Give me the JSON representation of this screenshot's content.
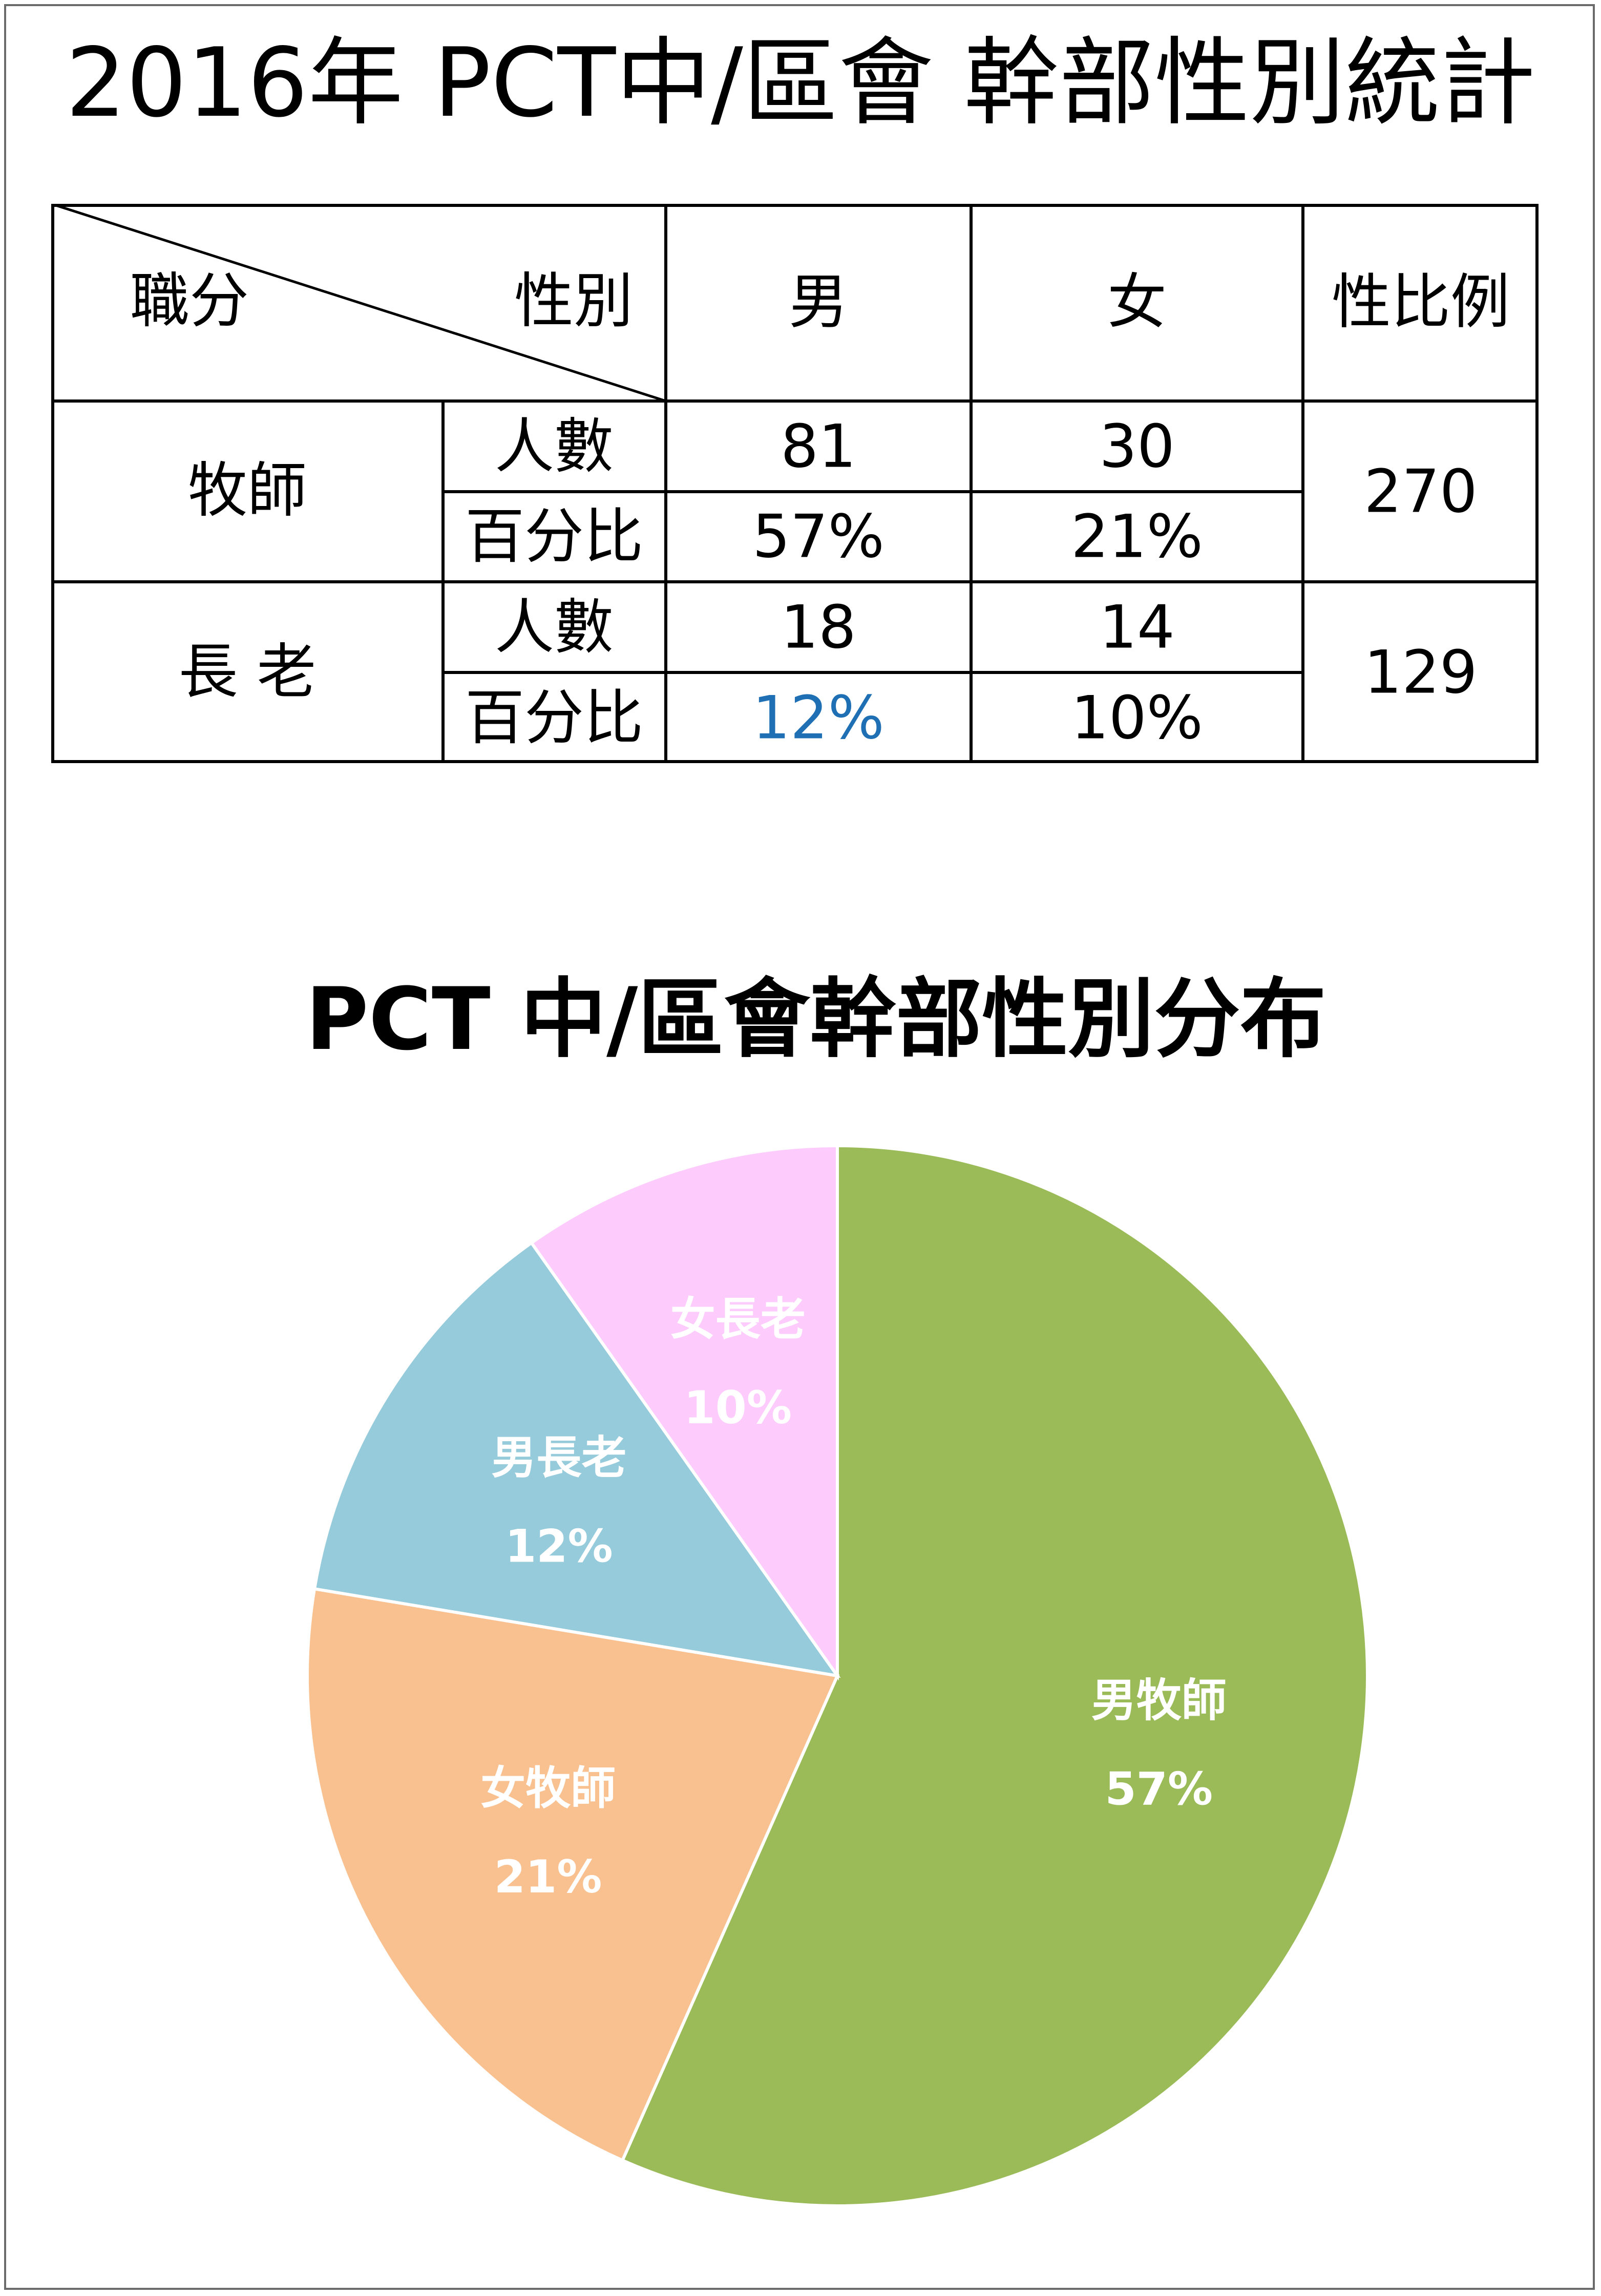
{
  "page_title": "2016年 PCT中/區會 幹部性別統計",
  "table": {
    "corner_row_label": "職分",
    "corner_col_label": "性別",
    "col_headers": [
      "男",
      "女",
      "性比例"
    ],
    "rows": [
      {
        "role": "牧師",
        "sub_rows": [
          {
            "label": "人數",
            "male": "81",
            "female": "30"
          },
          {
            "label": "百分比",
            "male": "57%",
            "female": "21%"
          }
        ],
        "ratio": "270"
      },
      {
        "role": "長 老",
        "sub_rows": [
          {
            "label": "人數",
            "male": "18",
            "female": "14"
          },
          {
            "label": "百分比",
            "male": "12%",
            "female": "10%"
          }
        ],
        "ratio": "129"
      }
    ],
    "highlight_color": "#1f6fb4"
  },
  "chart_data": {
    "type": "pie",
    "title": "PCT 中/區會幹部性別分布",
    "slices": [
      {
        "label": "男牧師",
        "value": 81,
        "percent_label": "57%",
        "color": "#9bbb59"
      },
      {
        "label": "女牧師",
        "value": 30,
        "percent_label": "21%",
        "color": "#f9c090"
      },
      {
        "label": "男長老",
        "value": 18,
        "percent_label": "12%",
        "color": "#95cbdb"
      },
      {
        "label": "女長老",
        "value": 14,
        "percent_label": "10%",
        "color": "#fdccfd"
      }
    ],
    "start": "12 o'clock",
    "direction": "clockwise",
    "label_color": "#ffffff"
  }
}
